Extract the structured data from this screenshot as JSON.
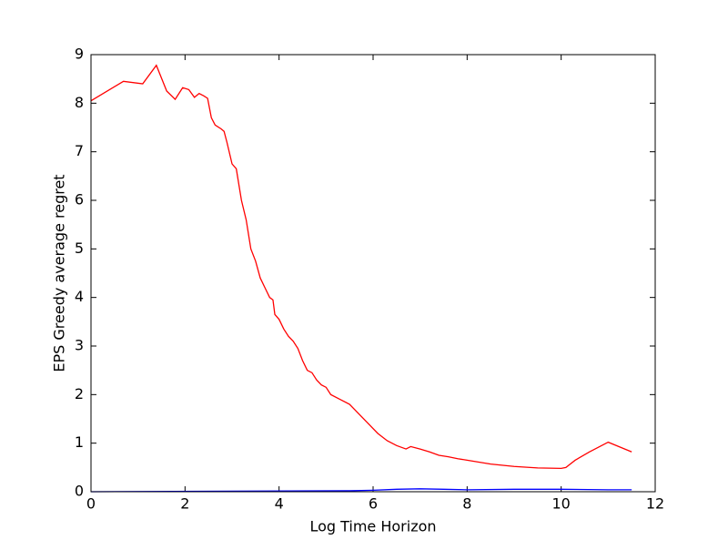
{
  "chart_data": {
    "type": "line",
    "x_label": "Log Time Horizon",
    "y_label": "EPS Greedy average regret",
    "xlim": [
      0,
      12
    ],
    "xticks": [
      0,
      2,
      4,
      6,
      8,
      10,
      12
    ],
    "ylim": [
      0,
      9
    ],
    "yticks": [
      0,
      1,
      2,
      3,
      4,
      5,
      6,
      7,
      8,
      9
    ],
    "grid": false,
    "series": [
      {
        "color": "#ff0000",
        "x": [
          0,
          0.69,
          1.1,
          1.39,
          1.61,
          1.79,
          1.95,
          2.08,
          2.2,
          2.3,
          2.4,
          2.48,
          2.56,
          2.64,
          2.77,
          2.83,
          2.89,
          3.0,
          3.09,
          3.2,
          3.3,
          3.4,
          3.5,
          3.6,
          3.7,
          3.8,
          3.87,
          3.91,
          4.0,
          4.1,
          4.2,
          4.3,
          4.4,
          4.5,
          4.6,
          4.7,
          4.8,
          4.9,
          5.0,
          5.1,
          5.3,
          5.5,
          5.7,
          5.9,
          6.1,
          6.3,
          6.5,
          6.7,
          6.8,
          7.0,
          7.2,
          7.4,
          7.6,
          7.8,
          8.0,
          8.5,
          9.0,
          9.5,
          10.0,
          10.1,
          10.3,
          10.6,
          11.0,
          11.3,
          11.5
        ],
        "values": [
          8.05,
          8.45,
          8.4,
          8.78,
          8.25,
          8.08,
          8.32,
          8.28,
          8.12,
          8.2,
          8.15,
          8.1,
          7.7,
          7.55,
          7.47,
          7.42,
          7.2,
          6.75,
          6.65,
          6.0,
          5.6,
          5.0,
          4.75,
          4.4,
          4.2,
          4.0,
          3.95,
          3.65,
          3.55,
          3.35,
          3.2,
          3.1,
          2.95,
          2.7,
          2.5,
          2.45,
          2.3,
          2.2,
          2.15,
          2.0,
          1.9,
          1.8,
          1.6,
          1.4,
          1.2,
          1.05,
          0.95,
          0.88,
          0.93,
          0.88,
          0.82,
          0.75,
          0.72,
          0.68,
          0.65,
          0.57,
          0.52,
          0.49,
          0.48,
          0.5,
          0.65,
          0.82,
          1.02,
          0.9,
          0.82
        ]
      },
      {
        "color": "#0000ff",
        "x": [
          0,
          5.5,
          6.0,
          6.5,
          7.0,
          7.5,
          8.0,
          9.0,
          10.0,
          11.0,
          11.5
        ],
        "values": [
          0,
          0.02,
          0.03,
          0.05,
          0.06,
          0.05,
          0.04,
          0.05,
          0.05,
          0.04,
          0.04
        ]
      }
    ]
  }
}
